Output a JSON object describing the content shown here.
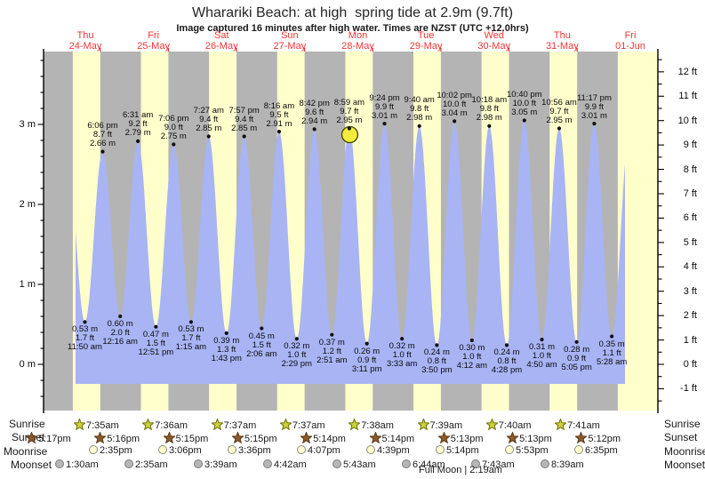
{
  "title": "Wharariki Beach: at high  spring tide at 2.9m (9.7ft)",
  "subtitle": "Image captured 16 minutes after high water. Times are NZST (UTC +12.0hrs)",
  "colors": {
    "night_band": "#b4b4b4",
    "day_band": "#ffffcc",
    "water": "#a8b4f4",
    "day_label_red": "#f23535",
    "red_tick": "#e03030",
    "axis": "#000000",
    "marker_fill": "#f3eb3e",
    "marker_stroke": "#454500",
    "sunrise_star_fill": "#ccd23f",
    "sunrise_star_stroke": "#6b7000",
    "sunset_star_fill": "#8d5a28",
    "sunset_star_stroke": "#59391a",
    "moonrise_fill": "#ffffcc",
    "moonrise_stroke": "#8a8a8a",
    "moonset_fill": "#b6b6b6",
    "moonset_stroke": "#7d7d7d"
  },
  "chart_data": {
    "type": "area",
    "title": "Wharariki Beach tide heights",
    "ylabel_left": "metres",
    "ylabel_right": "feet",
    "y_axis_left_labels": [
      "0 m",
      "1 m",
      "2 m",
      "3 m"
    ],
    "y_axis_right_labels": [
      "-1 ft",
      "0 ft",
      "1 ft",
      "2 ft",
      "3 ft",
      "4 ft",
      "5 ft",
      "6 ft",
      "7 ft",
      "8 ft",
      "9 ft",
      "10 ft",
      "11 ft",
      "12 ft"
    ],
    "days": [
      {
        "dow": "Thu",
        "date": "24-May"
      },
      {
        "dow": "Fri",
        "date": "25-May"
      },
      {
        "dow": "Sat",
        "date": "26-May"
      },
      {
        "dow": "Sun",
        "date": "27-May"
      },
      {
        "dow": "Mon",
        "date": "28-May"
      },
      {
        "dow": "Tue",
        "date": "29-May"
      },
      {
        "dow": "Wed",
        "date": "30-May"
      },
      {
        "dow": "Thu",
        "date": "31-May"
      },
      {
        "dow": "Fri",
        "date": "01-Jun"
      }
    ],
    "current_marker": {
      "time": "8:59 am",
      "note": "16 minutes after high water"
    },
    "tide_events": [
      {
        "kind": "edge",
        "t": 5.65,
        "m": 2.62
      },
      {
        "kind": "low",
        "t": 11.833,
        "m": 0.53,
        "m_label": "0.53 m",
        "ft_label": "1.7 ft",
        "time": "11:50 am"
      },
      {
        "kind": "high",
        "t": 18.1,
        "m": 2.66,
        "m_label": "2.66 m",
        "ft_label": "8.7 ft",
        "time": "6:06 pm"
      },
      {
        "kind": "low",
        "t": 24.267,
        "m": 0.6,
        "m_label": "0.60 m",
        "ft_label": "2.0 ft",
        "time": "12:16 am"
      },
      {
        "kind": "high",
        "t": 30.517,
        "m": 2.79,
        "m_label": "2.79 m",
        "ft_label": "9.2 ft",
        "time": "6:31 am"
      },
      {
        "kind": "low",
        "t": 36.85,
        "m": 0.47,
        "m_label": "0.47 m",
        "ft_label": "1.5 ft",
        "time": "12:51 pm"
      },
      {
        "kind": "high",
        "t": 43.1,
        "m": 2.75,
        "m_label": "2.75 m",
        "ft_label": "9.0 ft",
        "time": "7:06 pm"
      },
      {
        "kind": "low",
        "t": 49.25,
        "m": 0.53,
        "m_label": "0.53 m",
        "ft_label": "1.7 ft",
        "time": "1:15 am"
      },
      {
        "kind": "high",
        "t": 55.45,
        "m": 2.85,
        "m_label": "2.85 m",
        "ft_label": "9.4 ft",
        "time": "7:27 am"
      },
      {
        "kind": "low",
        "t": 61.717,
        "m": 0.39,
        "m_label": "0.39 m",
        "ft_label": "1.3 ft",
        "time": "1:43 pm"
      },
      {
        "kind": "high",
        "t": 67.95,
        "m": 2.85,
        "m_label": "2.85 m",
        "ft_label": "9.4 ft",
        "time": "7:57 pm"
      },
      {
        "kind": "low",
        "t": 74.1,
        "m": 0.45,
        "m_label": "0.45 m",
        "ft_label": "1.5 ft",
        "time": "2:06 am"
      },
      {
        "kind": "high",
        "t": 80.267,
        "m": 2.91,
        "m_label": "2.91 m",
        "ft_label": "9.5 ft",
        "time": "8:16 am"
      },
      {
        "kind": "low",
        "t": 86.483,
        "m": 0.32,
        "m_label": "0.32 m",
        "ft_label": "1.0 ft",
        "time": "2:29 pm"
      },
      {
        "kind": "high",
        "t": 92.7,
        "m": 2.94,
        "m_label": "2.94 m",
        "ft_label": "9.6 ft",
        "time": "8:42 pm"
      },
      {
        "kind": "low",
        "t": 98.85,
        "m": 0.37,
        "m_label": "0.37 m",
        "ft_label": "1.2 ft",
        "time": "2:51 am"
      },
      {
        "kind": "high",
        "t": 104.983,
        "m": 2.95,
        "m_label": "2.95 m",
        "ft_label": "9.7 ft",
        "time": "8:59 am",
        "current": true
      },
      {
        "kind": "low",
        "t": 111.183,
        "m": 0.26,
        "m_label": "0.26 m",
        "ft_label": "0.9 ft",
        "time": "3:11 pm"
      },
      {
        "kind": "high",
        "t": 117.4,
        "m": 3.01,
        "m_label": "3.01 m",
        "ft_label": "9.9 ft",
        "time": "9:24 pm"
      },
      {
        "kind": "low",
        "t": 123.55,
        "m": 0.32,
        "m_label": "0.32 m",
        "ft_label": "1.0 ft",
        "time": "3:33 am"
      },
      {
        "kind": "high",
        "t": 129.667,
        "m": 2.98,
        "m_label": "2.98 m",
        "ft_label": "9.8 ft",
        "time": "9:40 am"
      },
      {
        "kind": "low",
        "t": 135.833,
        "m": 0.24,
        "m_label": "0.24 m",
        "ft_label": "0.8 ft",
        "time": "3:50 pm"
      },
      {
        "kind": "high",
        "t": 142.033,
        "m": 3.04,
        "m_label": "3.04 m",
        "ft_label": "10.0 ft",
        "time": "10:02 pm"
      },
      {
        "kind": "low",
        "t": 148.2,
        "m": 0.3,
        "m_label": "0.30 m",
        "ft_label": "1.0 ft",
        "time": "4:12 am"
      },
      {
        "kind": "high",
        "t": 154.3,
        "m": 2.98,
        "m_label": "2.98 m",
        "ft_label": "9.8 ft",
        "time": "10:18 am"
      },
      {
        "kind": "low",
        "t": 160.467,
        "m": 0.24,
        "m_label": "0.24 m",
        "ft_label": "0.8 ft",
        "time": "4:28 pm"
      },
      {
        "kind": "high",
        "t": 166.667,
        "m": 3.05,
        "m_label": "3.05 m",
        "ft_label": "10.0 ft",
        "time": "10:40 pm"
      },
      {
        "kind": "low",
        "t": 172.833,
        "m": 0.31,
        "m_label": "0.31 m",
        "ft_label": "1.0 ft",
        "time": "4:50 am"
      },
      {
        "kind": "high",
        "t": 178.933,
        "m": 2.95,
        "m_label": "2.95 m",
        "ft_label": "9.7 ft",
        "time": "10:56 am"
      },
      {
        "kind": "low",
        "t": 185.083,
        "m": 0.28,
        "m_label": "0.28 m",
        "ft_label": "0.9 ft",
        "time": "5:05 pm"
      },
      {
        "kind": "high",
        "t": 191.283,
        "m": 3.01,
        "m_label": "3.01 m",
        "ft_label": "9.9 ft",
        "time": "11:17 pm"
      },
      {
        "kind": "low",
        "t": 197.467,
        "m": 0.35,
        "m_label": "0.35 m",
        "ft_label": "1.1 ft",
        "time": "5:28 am"
      },
      {
        "kind": "edge",
        "t": 203.7,
        "m": 2.9
      }
    ]
  },
  "astro": {
    "sunrise": {
      "label": "Sunrise",
      "entries": [
        "7:35am",
        "7:36am",
        "7:37am",
        "7:37am",
        "7:38am",
        "7:39am",
        "7:40am",
        "7:41am"
      ]
    },
    "sunset": {
      "label": "Sunset",
      "entries": [
        "5:17pm",
        "5:16pm",
        "5:15pm",
        "5:15pm",
        "5:14pm",
        "5:14pm",
        "5:13pm",
        "5:13pm",
        "5:12pm"
      ]
    },
    "moonrise": {
      "label": "Moonrise",
      "entries": [
        "2:35pm",
        "3:06pm",
        "3:36pm",
        "4:07pm",
        "4:39pm",
        "5:14pm",
        "5:53pm",
        "6:35pm"
      ]
    },
    "moonset": {
      "label": "Moonset",
      "entries": [
        "1:30am",
        "2:35am",
        "3:39am",
        "4:42am",
        "5:43am",
        "6:44am",
        "7:43am",
        "8:39am"
      ]
    },
    "moon_phase": "Full Moon | 2:19am"
  }
}
